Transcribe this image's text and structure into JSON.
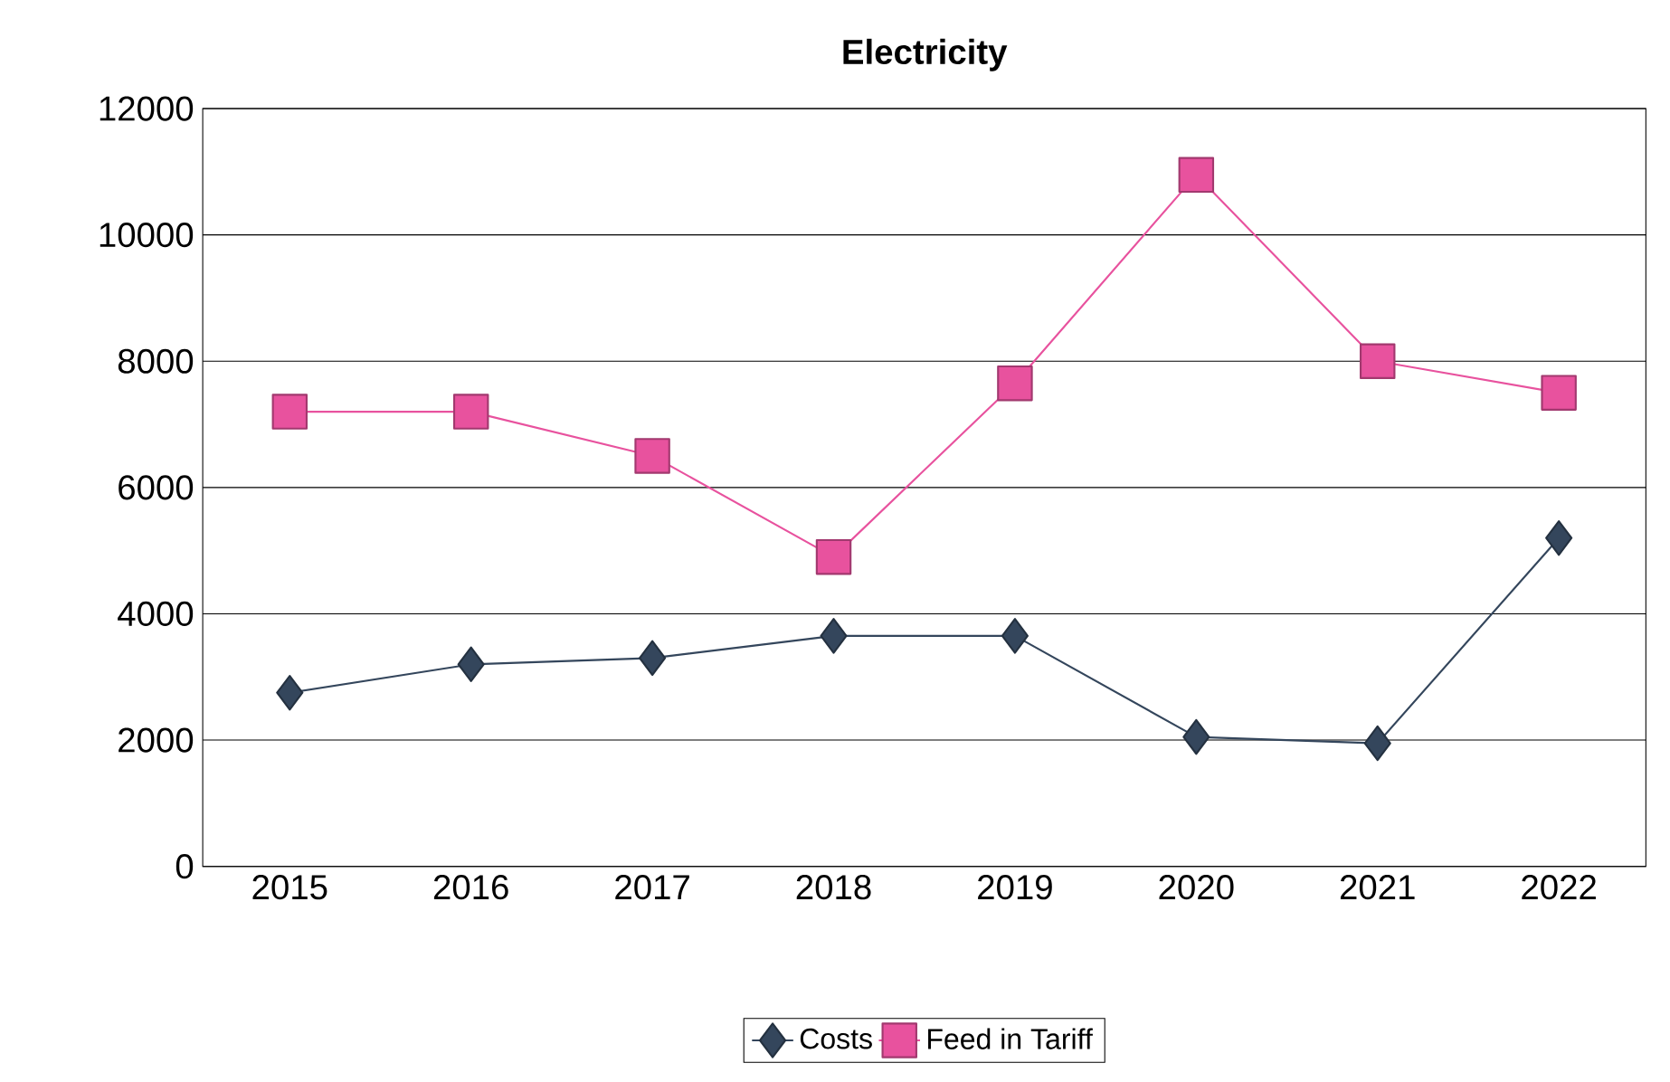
{
  "chart_data": {
    "type": "line",
    "title": "Electricity",
    "categories": [
      "2015",
      "2016",
      "2017",
      "2018",
      "2019",
      "2020",
      "2021",
      "2022"
    ],
    "series": [
      {
        "name": "Costs",
        "color": "#34465c",
        "marker": "diamond",
        "values": [
          2750,
          3200,
          3300,
          3650,
          3650,
          2050,
          1950,
          5200
        ]
      },
      {
        "name": "Feed in Tariff",
        "color": "#e8529e",
        "marker": "square",
        "values": [
          7200,
          7200,
          6500,
          4900,
          7650,
          10950,
          8000,
          7500
        ]
      }
    ],
    "ylim": [
      0,
      12000
    ],
    "yticks": [
      0,
      2000,
      4000,
      6000,
      8000,
      10000,
      12000
    ],
    "grid": "y",
    "legend": "bottom",
    "line_style": "solid"
  }
}
